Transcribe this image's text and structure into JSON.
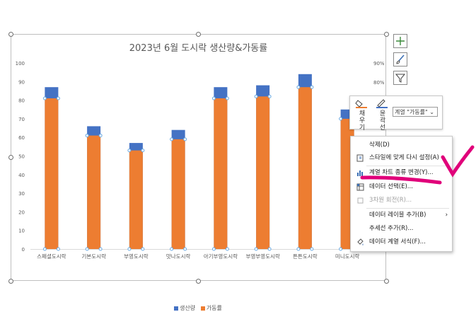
{
  "chart_data": {
    "type": "bar",
    "title": "2023년 6월 도시락 생산량&가동률",
    "categories": [
      "스페셜도시락",
      "기본도시락",
      "부영도시락",
      "맛나도시락",
      "아기부영도시락",
      "부영부영도시락",
      "튼튼도시락",
      "미니도시락"
    ],
    "ylim": [
      0,
      100
    ],
    "yticks": [
      "0",
      "10",
      "20",
      "30",
      "40",
      "50",
      "60",
      "70",
      "80",
      "90",
      "100"
    ],
    "y2ticks": [
      "80%",
      "90%"
    ],
    "series": [
      {
        "name": "생산량",
        "color": "#4472c4",
        "values": [
          87,
          66,
          57,
          64,
          87,
          88,
          94,
          75
        ]
      },
      {
        "name": "가동률",
        "color": "#ed7d31",
        "values": [
          81,
          61,
          53,
          59,
          81,
          82,
          87,
          70
        ]
      }
    ],
    "legend": "bottom",
    "grid": false
  },
  "toolbar": {
    "fill_label": "채우기",
    "outline_label": "윤곽선",
    "series_select": "계열 \"가동률\""
  },
  "context_menu": {
    "items": [
      {
        "label": "삭제(D)",
        "icon": "delete-icon",
        "enabled": true
      },
      {
        "label": "스타일에 맞게 다시 설정(A)",
        "icon": "reset-style-icon",
        "enabled": true
      },
      {
        "label": "계열 차트 종류 변경(Y)...",
        "icon": "chart-type-icon",
        "enabled": true
      },
      {
        "label": "데이터 선택(E)...",
        "icon": "select-data-icon",
        "enabled": true
      },
      {
        "label": "3차원 회전(R)...",
        "icon": "rotate-3d-icon",
        "enabled": false
      },
      {
        "label": "데이터 레이블 추가(B)",
        "icon": "",
        "enabled": true
      },
      {
        "label": "추세선 추가(R)...",
        "icon": "",
        "enabled": true
      },
      {
        "label": "데이터 계열 서식(F)...",
        "icon": "format-series-icon",
        "enabled": true
      }
    ]
  },
  "colors": {
    "accent_annotation": "#e0007a",
    "selection": "#6aaae4"
  }
}
